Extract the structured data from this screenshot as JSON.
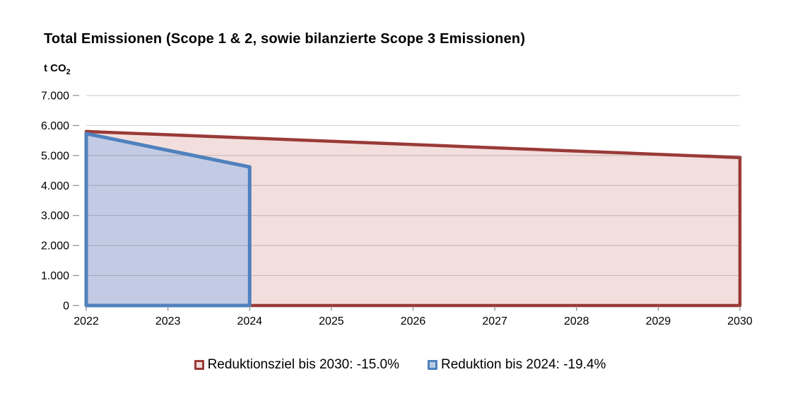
{
  "header": {
    "title": "Total Emissionen (Scope 1 & 2, sowie bilanzierte Scope 3 Emissionen)",
    "unit_label_prefix": "t CO",
    "unit_label_sub": "2"
  },
  "colors": {
    "background": "#FFFFFF",
    "grid": "rgba(0,0,0,0.16)",
    "tick": "#898989",
    "axis_text": "#000000",
    "shadow": "#BFBFBF"
  },
  "chart_data": {
    "type": "area",
    "title": "Total Emissionen (Scope 1 & 2, sowie bilanzierte Scope 3 Emissionen)",
    "xlabel": "",
    "ylabel": "t CO2",
    "xlim": [
      2022,
      2030
    ],
    "ylim": [
      0,
      7000
    ],
    "grid": true,
    "legend_position": "bottom",
    "x_tick_labels": [
      "2022",
      "2023",
      "2024",
      "2025",
      "2026",
      "2027",
      "2028",
      "2029",
      "2030"
    ],
    "y_tick_values": [
      0,
      1000,
      2000,
      3000,
      4000,
      5000,
      6000,
      7000
    ],
    "y_tick_labels": [
      "0",
      "1.000",
      "2.000",
      "3.000",
      "4.000",
      "5.000",
      "6.000",
      "7.000"
    ],
    "series": [
      {
        "name": "Reduktionsziel bis 2030: -15.0%",
        "x": [
          2022,
          2023,
          2024,
          2025,
          2026,
          2027,
          2028,
          2029,
          2030
        ],
        "values": [
          5800,
          5691,
          5583,
          5474,
          5365,
          5256,
          5148,
          5039,
          4930
        ],
        "reduction_pct": "-15.0%",
        "line_color": "#9A3A37",
        "fill_color": "#F2DEDD",
        "marker_fill": "#F2DCDB"
      },
      {
        "name": "Reduktion bis 2024: -19.4%",
        "x": [
          2022,
          2024
        ],
        "values": [
          5730,
          4618
        ],
        "reduction_pct": "-19.4%",
        "line_color": "#4F81BD",
        "fill_color": "#C3CBE4",
        "marker_fill": "#B8CCE4"
      }
    ]
  }
}
